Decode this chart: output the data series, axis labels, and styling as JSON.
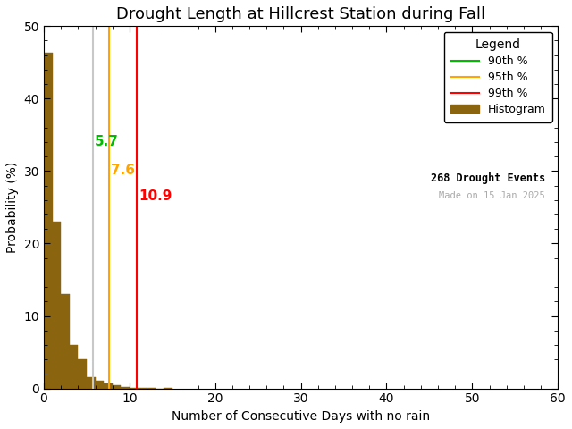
{
  "title": "Drought Length at Hillcrest Station during Fall",
  "xlabel": "Number of Consecutive Days with no rain",
  "ylabel": "Probability (%)",
  "xlim": [
    0,
    60
  ],
  "ylim": [
    0,
    50
  ],
  "xticks": [
    0,
    10,
    20,
    30,
    40,
    50,
    60
  ],
  "yticks": [
    0,
    10,
    20,
    30,
    40,
    50
  ],
  "bar_color": "#8B6410",
  "bar_edgecolor": "#8B6410",
  "bar_heights": [
    46.3,
    23.0,
    13.0,
    6.0,
    4.0,
    1.5,
    1.1,
    0.7,
    0.4,
    0.2,
    0.1,
    0.05,
    0.05,
    0.0,
    0.05
  ],
  "percentile_90": 5.7,
  "percentile_95": 7.6,
  "percentile_99": 10.9,
  "p90_color": "#C8C8C8",
  "p95_color": "#FFA500",
  "p99_color": "#FF0000",
  "p90_legend_color": "#00BB00",
  "p90_label": "90th %",
  "p95_label": "95th %",
  "p99_label": "99th %",
  "hist_label": "Histogram",
  "drought_events": "268 Drought Events",
  "made_on": "Made on 15 Jan 2025",
  "made_on_color": "#AAAAAA",
  "legend_title": "Legend",
  "background_color": "#FFFFFF",
  "p90_annot_color": "#00BB00",
  "p95_annot_color": "#FFA500",
  "p99_annot_color": "#FF0000",
  "annotation_fontsize": 11,
  "title_fontsize": 13
}
